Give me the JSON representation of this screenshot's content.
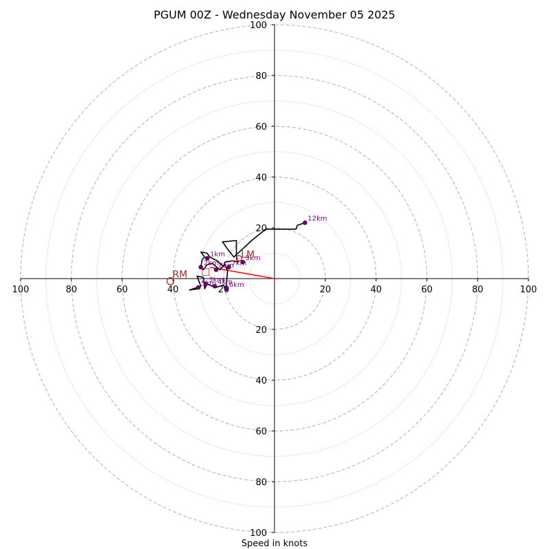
{
  "chart_data": {
    "type": "hodograph",
    "title": "PGUM 00Z - Wednesday November 05 2025",
    "xlabel": "Speed in knots",
    "range": [
      -100,
      100
    ],
    "rings_major": [
      20,
      40,
      60,
      80,
      100
    ],
    "rings_minor": [
      10,
      30,
      50,
      70,
      90
    ],
    "tick_values": [
      20,
      40,
      60,
      80,
      100
    ],
    "tick_labels": [
      "20",
      "40",
      "60",
      "80",
      "100"
    ],
    "colors": {
      "trace": "#000000",
      "height_marker": "#660066",
      "height_label": "#800080",
      "storm": "#b22222",
      "shear_vector": "#ff0000",
      "grid": "#bbbbbb",
      "axes": "#000000"
    },
    "hodograph_uv": [
      [
        -30.5,
        -3.5
      ],
      [
        -33.5,
        -4.5
      ],
      [
        -30.0,
        -4.0
      ],
      [
        -29.0,
        -3.0
      ],
      [
        -30.5,
        1.0
      ],
      [
        -28.0,
        0.5
      ],
      [
        -27.5,
        -4.0
      ],
      [
        -26.5,
        -2.0
      ],
      [
        -24.5,
        -3.0
      ],
      [
        -23.0,
        -3.5
      ],
      [
        -20.0,
        -2.5
      ],
      [
        -19.5,
        -4.5
      ],
      [
        -19.0,
        -2.5
      ],
      [
        -18.5,
        3.0
      ],
      [
        -19.5,
        5.5
      ],
      [
        -21.5,
        3.5
      ],
      [
        -24.5,
        6.0
      ],
      [
        -26.5,
        5.5
      ],
      [
        -28.0,
        3.5
      ],
      [
        -29.0,
        4.5
      ],
      [
        -28.5,
        7.5
      ],
      [
        -27.5,
        8.5
      ],
      [
        -29.0,
        10.5
      ],
      [
        -26.5,
        10.0
      ],
      [
        -25.5,
        8.5
      ],
      [
        -22.5,
        7.0
      ],
      [
        -21.0,
        5.5
      ],
      [
        -20.0,
        5.0
      ],
      [
        -19.5,
        6.5
      ],
      [
        -16.5,
        7.0
      ],
      [
        -14.5,
        6.5
      ],
      [
        -15.0,
        9.0
      ],
      [
        -15.0,
        15.0
      ],
      [
        -20.5,
        14.5
      ],
      [
        -18.0,
        11.0
      ],
      [
        -16.0,
        8.5
      ],
      [
        -9.0,
        15.0
      ],
      [
        -3.5,
        19.5
      ],
      [
        8.5,
        19.5
      ],
      [
        9.0,
        21.0
      ],
      [
        12.0,
        22.0
      ]
    ],
    "height_markers": [
      {
        "label": "1km",
        "u": -26.5,
        "v": 8.0
      },
      {
        "label": "2km",
        "u": -29.0,
        "v": 4.5
      },
      {
        "label": "3km",
        "u": -27.0,
        "v": -2.0
      },
      {
        "label": "4km",
        "u": -23.5,
        "v": -3.0
      },
      {
        "label": "5km",
        "u": -30.0,
        "v": -3.5
      },
      {
        "label": "6km",
        "u": -19.0,
        "v": -4.0
      },
      {
        "label": "7km",
        "u": -18.0,
        "v": 4.5
      },
      {
        "label": "8km",
        "u": -23.0,
        "v": 3.5
      },
      {
        "label": "9km",
        "u": -12.5,
        "v": 6.5
      },
      {
        "label": "12km",
        "u": 12.0,
        "v": 22.0
      }
    ],
    "storm_motion": {
      "RM": {
        "label": "RM",
        "u": -41.0,
        "v": -1.0
      },
      "LM": {
        "label": "LM",
        "u": -14.0,
        "v": 8.0
      },
      "MEAN": {
        "label": "□",
        "u": -27.0,
        "v": 3.0
      }
    },
    "shear_vector": {
      "u0": 0,
      "v0": 0,
      "u1": -25.5,
      "v1": 4.5
    }
  }
}
